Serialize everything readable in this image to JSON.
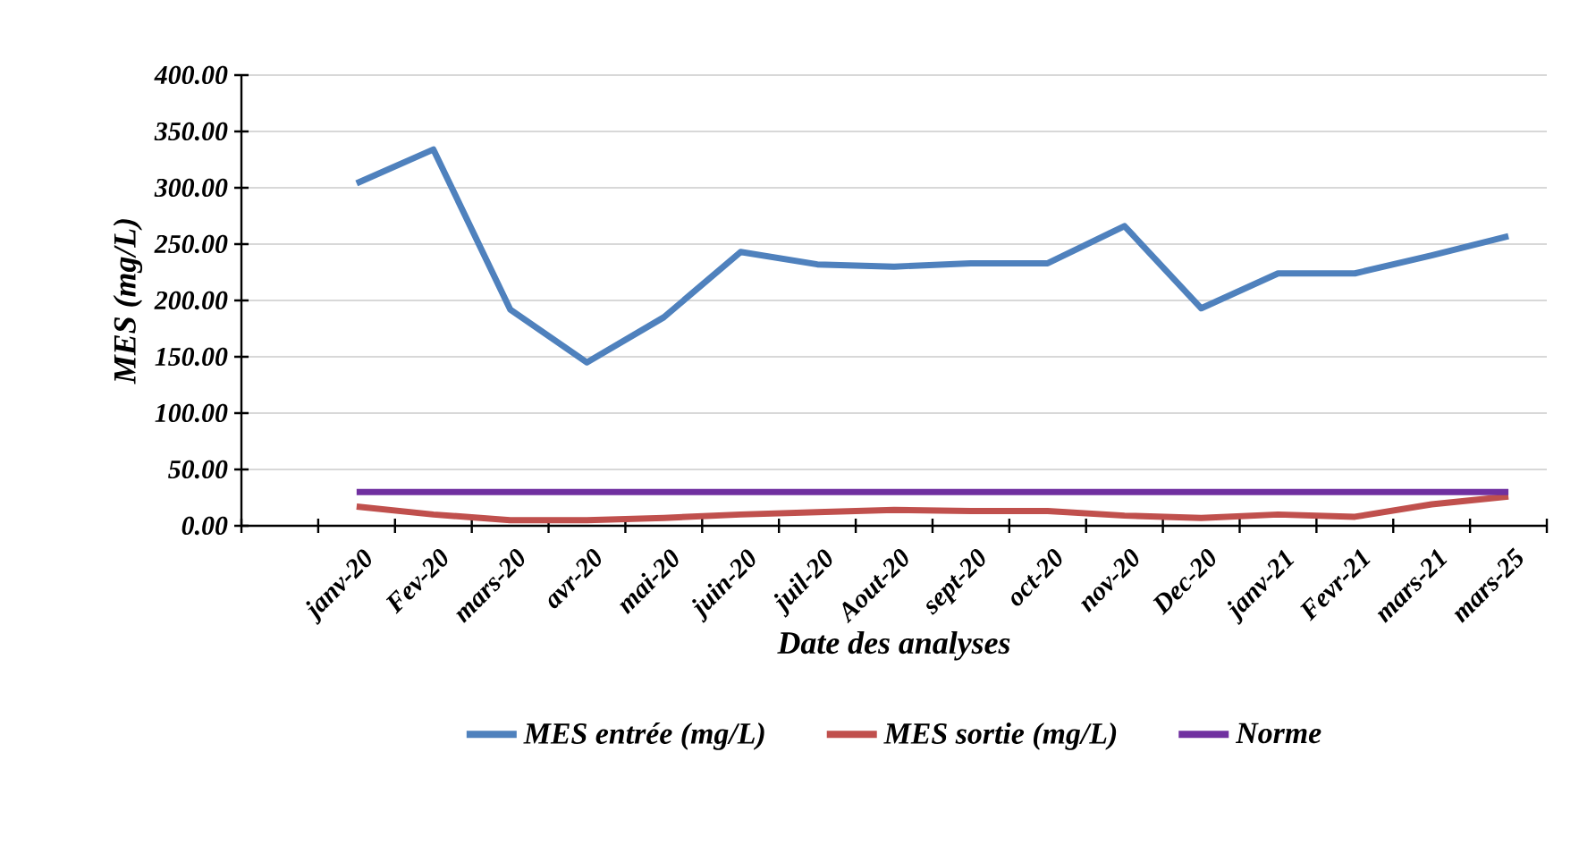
{
  "chart_data": {
    "type": "line",
    "xlabel": "Date des analyses",
    "ylabel": "MES (mg/L)",
    "categories": [
      null,
      "janv-20",
      "Fev-20",
      "mars-20",
      "avr-20",
      "mai-20",
      "juin-20",
      "juil-20",
      "Aout-20",
      "sept-20",
      "oct-20",
      "nov-20",
      "Dec-20",
      "janv-21",
      "Fevr-21",
      "mars-21",
      "mars-25"
    ],
    "series": [
      {
        "name": "MES entrée (mg/L)",
        "color": "#4f81bd",
        "values": [
          null,
          304,
          334,
          192,
          145,
          185,
          243,
          232,
          230,
          233,
          233,
          266,
          193,
          224,
          224,
          240,
          257
        ]
      },
      {
        "name": "MES sortie (mg/L)",
        "color": "#c0504d",
        "values": [
          null,
          17,
          10,
          5,
          5,
          7,
          10,
          12,
          14,
          13,
          13,
          9,
          7,
          10,
          8,
          19,
          26
        ]
      },
      {
        "name": "Norme",
        "color": "#7030a0",
        "values": [
          null,
          30,
          30,
          30,
          30,
          30,
          30,
          30,
          30,
          30,
          30,
          30,
          30,
          30,
          30,
          30,
          30
        ]
      }
    ],
    "ylim": [
      0,
      400
    ],
    "yticks": [
      {
        "value": 0,
        "label": "0.00"
      },
      {
        "value": 50,
        "label": "50.00"
      },
      {
        "value": 100,
        "label": "100.00"
      },
      {
        "value": 150,
        "label": "150.00"
      },
      {
        "value": 200,
        "label": "200.00"
      },
      {
        "value": 250,
        "label": "250.00"
      },
      {
        "value": 300,
        "label": "300.00"
      },
      {
        "value": 350,
        "label": "350.00"
      },
      {
        "value": 400,
        "label": "400.00"
      }
    ],
    "grid": "y",
    "legend": "bottom",
    "marker": "none",
    "line_style": "solid"
  }
}
